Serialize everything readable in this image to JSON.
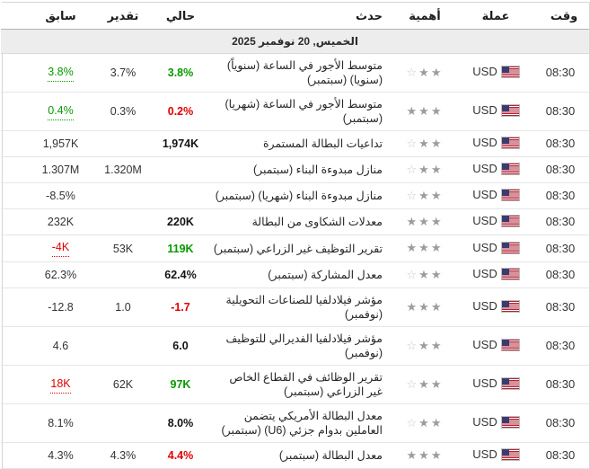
{
  "table": {
    "columns": {
      "time": "وقت",
      "currency": "عملة",
      "importance": "أهمية",
      "event": "حدث",
      "actual": "حالي",
      "forecast": "تقدير",
      "previous": "سابق"
    },
    "date_header": "الخميس, 20 نوفمبر 2025",
    "rows": [
      {
        "time": "08:30",
        "currency": "USD",
        "importance": 2,
        "event": "متوسط الأجور في الساعة (سنوياً) (سنويا) (سبتمبر)",
        "actual": {
          "text": "3.8%",
          "tone": "green"
        },
        "forecast": {
          "text": "3.7%"
        },
        "previous": {
          "text": "3.8%",
          "tone": "green",
          "revised": true
        }
      },
      {
        "time": "08:30",
        "currency": "USD",
        "importance": 3,
        "event": "متوسط الأجور في الساعة (شهريا) (سبتمبر)",
        "actual": {
          "text": "0.2%",
          "tone": "red"
        },
        "forecast": {
          "text": "0.3%"
        },
        "previous": {
          "text": "0.4%",
          "tone": "green",
          "revised": true
        }
      },
      {
        "time": "08:30",
        "currency": "USD",
        "importance": 2,
        "event": "تداعيات البطالة المستمرة",
        "actual": {
          "text": "1,974K"
        },
        "forecast": {
          "text": ""
        },
        "previous": {
          "text": "1,957K"
        }
      },
      {
        "time": "08:30",
        "currency": "USD",
        "importance": 2,
        "event": "منازل مبدوءة البناء (سبتمبر)",
        "actual": {
          "text": ""
        },
        "forecast": {
          "text": "1.320M"
        },
        "previous": {
          "text": "1.307M"
        }
      },
      {
        "time": "08:30",
        "currency": "USD",
        "importance": 2,
        "event": "منازل مبدوءة البناء (شهريا) (سبتمبر)",
        "actual": {
          "text": ""
        },
        "forecast": {
          "text": ""
        },
        "previous": {
          "text": "-8.5%"
        }
      },
      {
        "time": "08:30",
        "currency": "USD",
        "importance": 3,
        "event": "معدلات الشكاوى من البطالة",
        "actual": {
          "text": "220K"
        },
        "forecast": {
          "text": ""
        },
        "previous": {
          "text": "232K"
        }
      },
      {
        "time": "08:30",
        "currency": "USD",
        "importance": 3,
        "event": "تقرير التوظيف غير الزراعي (سبتمبر)",
        "actual": {
          "text": "119K",
          "tone": "green"
        },
        "forecast": {
          "text": "53K"
        },
        "previous": {
          "text": "-4K",
          "tone": "red",
          "revised": true
        }
      },
      {
        "time": "08:30",
        "currency": "USD",
        "importance": 2,
        "event": "معدل المشاركة (سبتمبر)",
        "actual": {
          "text": "62.4%"
        },
        "forecast": {
          "text": ""
        },
        "previous": {
          "text": "62.3%"
        }
      },
      {
        "time": "08:30",
        "currency": "USD",
        "importance": 3,
        "event": "مؤشر فيلادلفيا للصناعات التحويلية (نوفمبر)",
        "actual": {
          "text": "-1.7",
          "tone": "red"
        },
        "forecast": {
          "text": "1.0"
        },
        "previous": {
          "text": "-12.8"
        }
      },
      {
        "time": "08:30",
        "currency": "USD",
        "importance": 2,
        "event": "مؤشر فيلادلفيا الفديرالي للتوظيف (نوفمبر)",
        "actual": {
          "text": "6.0"
        },
        "forecast": {
          "text": ""
        },
        "previous": {
          "text": "4.6"
        }
      },
      {
        "time": "08:30",
        "currency": "USD",
        "importance": 2,
        "event": "تقرير الوظائف في القطاع الخاص غير الزراعي (سبتمبر)",
        "actual": {
          "text": "97K",
          "tone": "green"
        },
        "forecast": {
          "text": "62K"
        },
        "previous": {
          "text": "18K",
          "tone": "red",
          "revised": true
        }
      },
      {
        "time": "08:30",
        "currency": "USD",
        "importance": 2,
        "event": "معدل البطالة الأمريكي يتضمن العاملين بدوام جزئي (U6) (سبتمبر)",
        "actual": {
          "text": "8.0%"
        },
        "forecast": {
          "text": ""
        },
        "previous": {
          "text": "8.1%"
        }
      },
      {
        "time": "08:30",
        "currency": "USD",
        "importance": 3,
        "event": "معدل البطالة (سبتمبر)",
        "actual": {
          "text": "4.4%",
          "tone": "red"
        },
        "forecast": {
          "text": "4.3%"
        },
        "previous": {
          "text": "4.3%"
        }
      }
    ]
  },
  "colors": {
    "positive": "#0a9900",
    "negative": "#e10000",
    "star_filled": "#9c9c9c",
    "star_empty": "#c9c9c9"
  },
  "icons": {
    "star_filled_glyph": "★",
    "star_empty_glyph": "☆"
  }
}
